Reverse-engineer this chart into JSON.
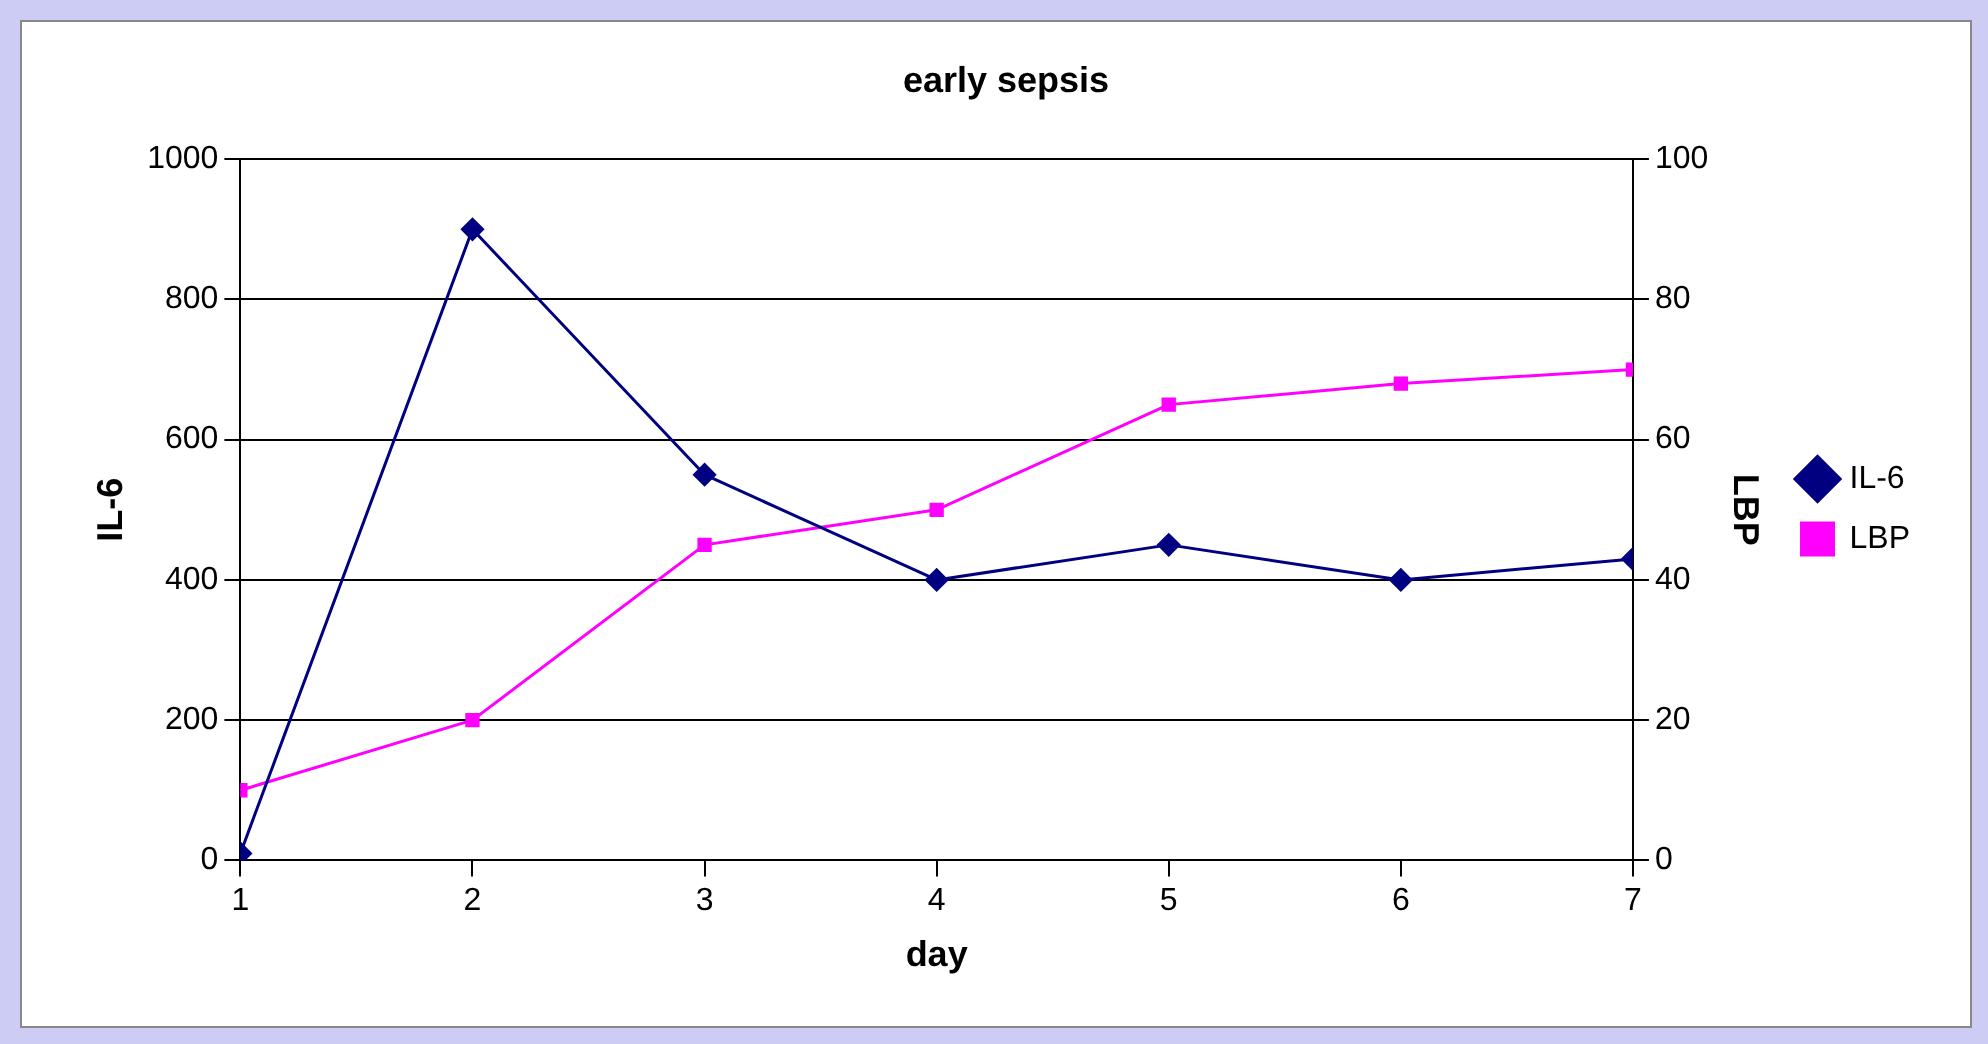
{
  "chart_data": {
    "type": "line",
    "title": "early sepsis",
    "xlabel": "day",
    "ylabel": "IL-6",
    "y2label": "LBP",
    "x": [
      1,
      2,
      3,
      4,
      5,
      6,
      7
    ],
    "series": [
      {
        "name": "IL-6",
        "color": "#000080",
        "marker": "diamond",
        "values": [
          10,
          900,
          550,
          400,
          450,
          400,
          430
        ]
      },
      {
        "name": "LBP",
        "color": "#ff00ff",
        "marker": "square",
        "axis": "y2",
        "values": [
          10,
          20,
          45,
          50,
          65,
          68,
          70
        ]
      }
    ],
    "xlim": [
      1,
      7
    ],
    "xticks": [
      1,
      2,
      3,
      4,
      5,
      6,
      7
    ],
    "ylim": [
      0,
      1000
    ],
    "yticks": [
      0,
      200,
      400,
      600,
      800,
      1000
    ],
    "y2lim": [
      0,
      100
    ],
    "y2ticks": [
      0,
      20,
      40,
      60,
      80,
      100
    ],
    "grid": "y",
    "legend": "right",
    "line_style": "solid"
  }
}
